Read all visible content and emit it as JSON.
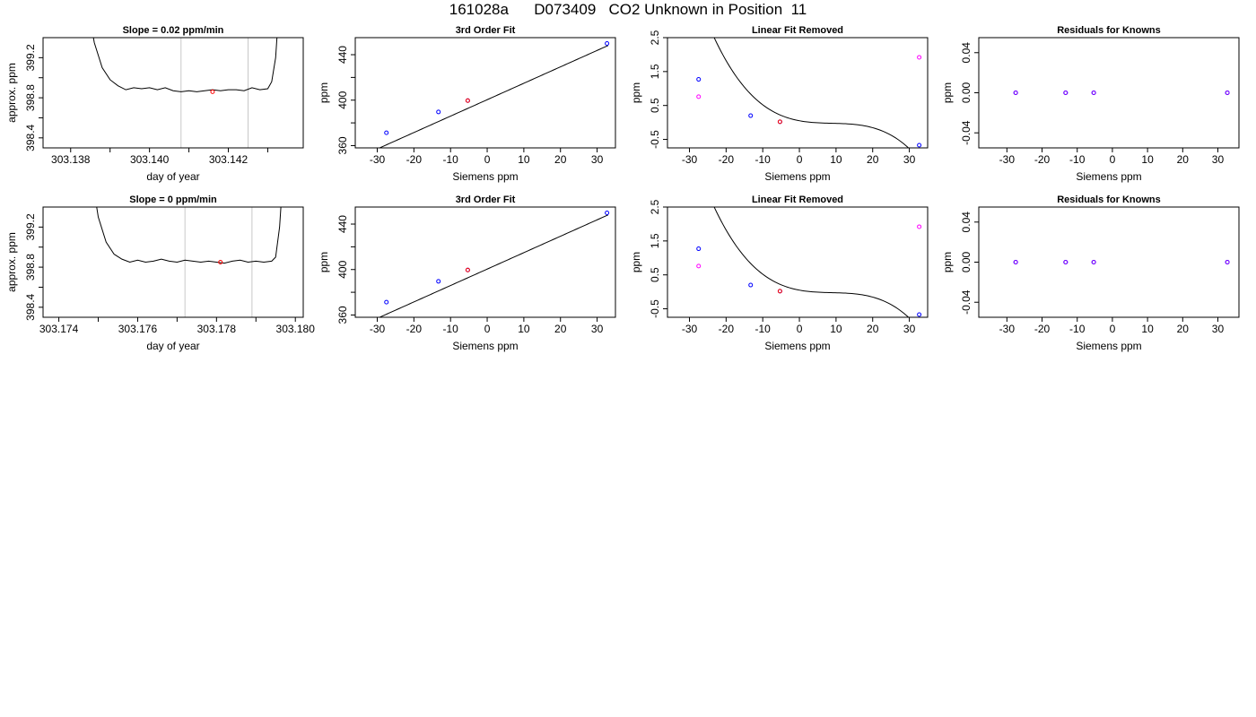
{
  "page_title": "161028a      D073409   CO2 Unknown in Position  11",
  "colors": {
    "axis": "#000000",
    "curve": "#000000",
    "time_marker": "#c8c8c8",
    "blue_points": "#0000ff",
    "red_points": "#ff0000",
    "magenta_points": "#ff00ff",
    "purple_points": "#8000ff"
  },
  "chart_data": [
    {
      "id": "row1-drift",
      "type": "line",
      "title": "Slope =  0.02  ppm/min",
      "xlabel": "day of year",
      "ylabel": "approx. ppm",
      "xlim": [
        303.1373,
        303.1439
      ],
      "ylim": [
        398.3,
        399.4
      ],
      "xticks": [
        303.138,
        303.139,
        303.14,
        303.141,
        303.142,
        303.143
      ],
      "xtick_labels": [
        "303.138",
        "",
        "303.140",
        "",
        "303.142",
        ""
      ],
      "yticks": [
        398.4,
        398.6,
        398.8,
        399.0,
        399.2
      ],
      "ytick_labels": [
        "398.4",
        "",
        "398.8",
        "",
        "399.2"
      ],
      "grid": false,
      "vlines": [
        303.1408,
        303.1425
      ],
      "series": [
        {
          "style": "line",
          "color": "#000000",
          "x": [
            303.1384,
            303.1386,
            303.1388,
            303.139,
            303.1392,
            303.1394,
            303.1396,
            303.1398,
            303.14,
            303.1402,
            303.1404,
            303.1406,
            303.1408,
            303.141,
            303.1412,
            303.1414,
            303.1416,
            303.1418,
            303.142,
            303.1422,
            303.1424,
            303.1426,
            303.1428,
            303.143,
            303.1431,
            303.1432,
            303.1433
          ],
          "y": [
            399.8,
            399.35,
            399.1,
            398.98,
            398.92,
            398.88,
            398.9,
            398.89,
            398.9,
            398.88,
            398.9,
            398.87,
            398.86,
            398.87,
            398.86,
            398.87,
            398.88,
            398.87,
            398.88,
            398.88,
            398.87,
            398.9,
            398.88,
            398.89,
            398.96,
            399.2,
            399.8
          ]
        },
        {
          "style": "points",
          "color": "#ff0000",
          "x": [
            303.1416
          ],
          "y": [
            398.86
          ]
        }
      ]
    },
    {
      "id": "row1-fit",
      "type": "scatter",
      "title": "3rd Order Fit",
      "xlabel": "Siemens ppm",
      "ylabel": "ppm",
      "xlim": [
        -36,
        35
      ],
      "ylim": [
        358,
        455
      ],
      "xticks": [
        -30,
        -20,
        -10,
        0,
        10,
        20,
        30
      ],
      "xtick_labels": [
        "-30",
        "-20",
        "-10",
        "0",
        "10",
        "20",
        "30"
      ],
      "yticks": [
        360,
        380,
        400,
        420,
        440
      ],
      "ytick_labels": [
        "360",
        "",
        "400",
        "",
        "440"
      ],
      "grid": false,
      "curve": {
        "a": 400.4,
        "b": 1.445,
        "c": 0,
        "d": 0,
        "from": -34,
        "to": 33
      },
      "series": [
        {
          "style": "points",
          "color": "#0000ff",
          "x": [
            -27.5,
            -13.3,
            -5.3,
            32.7
          ],
          "y": [
            371.3,
            389.6,
            399.6,
            449.9
          ]
        },
        {
          "style": "points",
          "color": "#ff0000",
          "x": [
            -5.3
          ],
          "y": [
            399.6
          ]
        }
      ]
    },
    {
      "id": "row1-linear-removed",
      "type": "scatter",
      "title": "Linear Fit Removed",
      "xlabel": "Siemens ppm",
      "ylabel": "ppm",
      "xlim": [
        -36,
        35
      ],
      "ylim": [
        -0.75,
        2.5
      ],
      "xticks": [
        -30,
        -20,
        -10,
        0,
        10,
        20,
        30
      ],
      "xtick_labels": [
        "-30",
        "-20",
        "-10",
        "0",
        "10",
        "20",
        "30"
      ],
      "yticks": [
        -0.5,
        0.5,
        1.5,
        2.5
      ],
      "ytick_labels": [
        "-0.5",
        "0.5",
        "1.5",
        "2.5"
      ],
      "grid": false,
      "curve": {
        "a": 0.05,
        "b": -0.02,
        "c": 0.00196,
        "d": -7.36e-05,
        "from": -35,
        "to": 33
      },
      "series": [
        {
          "style": "points",
          "color": "#0000ff",
          "x": [
            -27.5,
            -13.3,
            -5.3,
            32.7
          ],
          "y": [
            1.27,
            0.2,
            0.02,
            -0.67
          ]
        },
        {
          "style": "points",
          "color": "#ff0000",
          "x": [
            -5.3
          ],
          "y": [
            0.02
          ]
        },
        {
          "style": "points",
          "color": "#ff00ff",
          "x": [
            -27.5,
            32.7
          ],
          "y": [
            0.76,
            1.92
          ]
        }
      ]
    },
    {
      "id": "row1-residuals",
      "type": "scatter",
      "title": "Residuals for Knowns",
      "xlabel": "Siemens ppm",
      "ylabel": "ppm",
      "xlim": [
        -38,
        36
      ],
      "ylim": [
        -0.055,
        0.055
      ],
      "xticks": [
        -30,
        -20,
        -10,
        0,
        10,
        20,
        30
      ],
      "xtick_labels": [
        "-30",
        "-20",
        "-10",
        "0",
        "10",
        "20",
        "30"
      ],
      "yticks": [
        -0.04,
        0,
        0.04
      ],
      "ytick_labels": [
        "-0.04",
        "0.00",
        "0.04"
      ],
      "grid": false,
      "series": [
        {
          "style": "points",
          "color": "#0000ff",
          "x": [
            -27.5,
            -13.3,
            -5.3,
            32.7
          ],
          "y": [
            0,
            0,
            0,
            0
          ]
        },
        {
          "style": "points",
          "color": "#8000ff",
          "x": [
            -27.5,
            -13.3,
            -5.3,
            32.7
          ],
          "y": [
            0,
            0,
            0,
            0
          ]
        }
      ]
    },
    {
      "id": "row2-drift",
      "type": "line",
      "title": "Slope =  0  ppm/min",
      "xlabel": "day of year",
      "ylabel": "approx. ppm",
      "xlim": [
        303.1736,
        303.1802
      ],
      "ylim": [
        398.3,
        399.4
      ],
      "xticks": [
        303.174,
        303.175,
        303.176,
        303.177,
        303.178,
        303.179,
        303.18
      ],
      "xtick_labels": [
        "303.174",
        "",
        "303.176",
        "",
        "303.178",
        "",
        "303.180"
      ],
      "yticks": [
        398.4,
        398.6,
        398.8,
        399.0,
        399.2
      ],
      "ytick_labels": [
        "398.4",
        "",
        "398.8",
        "",
        "399.2"
      ],
      "grid": false,
      "vlines": [
        303.1772,
        303.1789
      ],
      "series": [
        {
          "style": "line",
          "color": "#000000",
          "x": [
            303.1748,
            303.175,
            303.1752,
            303.1754,
            303.1756,
            303.1758,
            303.176,
            303.1762,
            303.1764,
            303.1766,
            303.1768,
            303.177,
            303.1772,
            303.1774,
            303.1776,
            303.1778,
            303.178,
            303.1782,
            303.1784,
            303.1786,
            303.1788,
            303.179,
            303.1792,
            303.1794,
            303.1795,
            303.1796,
            303.1797
          ],
          "y": [
            399.8,
            399.3,
            399.05,
            398.93,
            398.88,
            398.85,
            398.87,
            398.85,
            398.86,
            398.88,
            398.86,
            398.85,
            398.87,
            398.86,
            398.85,
            398.86,
            398.85,
            398.84,
            398.86,
            398.87,
            398.85,
            398.86,
            398.85,
            398.86,
            398.9,
            399.2,
            399.8
          ]
        },
        {
          "style": "points",
          "color": "#ff0000",
          "x": [
            303.1781
          ],
          "y": [
            398.85
          ]
        }
      ]
    },
    {
      "id": "row2-fit",
      "type": "scatter",
      "title": "3rd Order Fit",
      "xlabel": "Siemens ppm",
      "ylabel": "ppm",
      "xlim": [
        -36,
        35
      ],
      "ylim": [
        358,
        455
      ],
      "xticks": [
        -30,
        -20,
        -10,
        0,
        10,
        20,
        30
      ],
      "xtick_labels": [
        "-30",
        "-20",
        "-10",
        "0",
        "10",
        "20",
        "30"
      ],
      "yticks": [
        360,
        380,
        400,
        420,
        440
      ],
      "ytick_labels": [
        "360",
        "",
        "400",
        "",
        "440"
      ],
      "grid": false,
      "curve": {
        "a": 400.4,
        "b": 1.445,
        "c": 0,
        "d": 0,
        "from": -34,
        "to": 33
      },
      "series": [
        {
          "style": "points",
          "color": "#0000ff",
          "x": [
            -27.5,
            -13.3,
            -5.3,
            32.7
          ],
          "y": [
            371.3,
            389.6,
            399.6,
            449.9
          ]
        },
        {
          "style": "points",
          "color": "#ff0000",
          "x": [
            -5.3
          ],
          "y": [
            399.6
          ]
        }
      ]
    },
    {
      "id": "row2-linear-removed",
      "type": "scatter",
      "title": "Linear Fit Removed",
      "xlabel": "Siemens ppm",
      "ylabel": "ppm",
      "xlim": [
        -36,
        35
      ],
      "ylim": [
        -0.75,
        2.5
      ],
      "xticks": [
        -30,
        -20,
        -10,
        0,
        10,
        20,
        30
      ],
      "xtick_labels": [
        "-30",
        "-20",
        "-10",
        "0",
        "10",
        "20",
        "30"
      ],
      "yticks": [
        -0.5,
        0.5,
        1.5,
        2.5
      ],
      "ytick_labels": [
        "-0.5",
        "0.5",
        "1.5",
        "2.5"
      ],
      "grid": false,
      "curve": {
        "a": 0.05,
        "b": -0.02,
        "c": 0.00196,
        "d": -7.36e-05,
        "from": -35,
        "to": 33
      },
      "series": [
        {
          "style": "points",
          "color": "#0000ff",
          "x": [
            -27.5,
            -13.3,
            -5.3,
            32.7
          ],
          "y": [
            1.27,
            0.2,
            0.02,
            -0.67
          ]
        },
        {
          "style": "points",
          "color": "#ff0000",
          "x": [
            -5.3
          ],
          "y": [
            0.02
          ]
        },
        {
          "style": "points",
          "color": "#ff00ff",
          "x": [
            -27.5,
            32.7
          ],
          "y": [
            0.76,
            1.92
          ]
        }
      ]
    },
    {
      "id": "row2-residuals",
      "type": "scatter",
      "title": "Residuals for Knowns",
      "xlabel": "Siemens ppm",
      "ylabel": "ppm",
      "xlim": [
        -38,
        36
      ],
      "ylim": [
        -0.055,
        0.055
      ],
      "xticks": [
        -30,
        -20,
        -10,
        0,
        10,
        20,
        30
      ],
      "xtick_labels": [
        "-30",
        "-20",
        "-10",
        "0",
        "10",
        "20",
        "30"
      ],
      "yticks": [
        -0.04,
        0,
        0.04
      ],
      "ytick_labels": [
        "-0.04",
        "0.00",
        "0.04"
      ],
      "grid": false,
      "series": [
        {
          "style": "points",
          "color": "#0000ff",
          "x": [
            -27.5,
            -13.3,
            -5.3,
            32.7
          ],
          "y": [
            0,
            0,
            0,
            0
          ]
        },
        {
          "style": "points",
          "color": "#8000ff",
          "x": [
            -27.5,
            -13.3,
            -5.3,
            32.7
          ],
          "y": [
            0,
            0,
            0,
            0
          ]
        }
      ]
    }
  ]
}
